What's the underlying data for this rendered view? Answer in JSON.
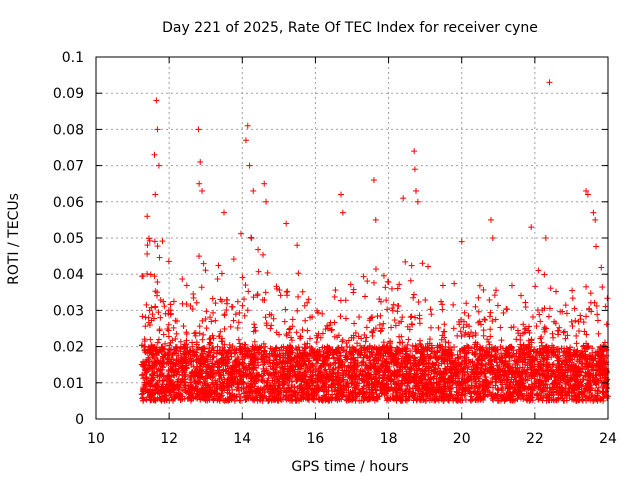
{
  "chart_data": {
    "type": "scatter",
    "title": "Day 221 of 2025, Rate Of TEC Index for receiver cyne",
    "xlabel": "GPS time / hours",
    "ylabel": "ROTI / TECUs",
    "xlim": [
      10,
      24
    ],
    "ylim": [
      0,
      0.1
    ],
    "xticks": [
      "10",
      "12",
      "14",
      "16",
      "18",
      "20",
      "22",
      "24"
    ],
    "yticks": [
      "0",
      "0.01",
      "0.02",
      "0.03",
      "0.04",
      "0.05",
      "0.06",
      "0.07",
      "0.08",
      "0.09",
      "0.1"
    ],
    "grid": true,
    "marker": "plus",
    "color": "#ff0000",
    "series": [
      {
        "name": "ROTI",
        "x_range": [
          11.25,
          24.0
        ],
        "typical_range": [
          0.005,
          0.02
        ],
        "envelope": [
          [
            11.3,
            0.058
          ],
          [
            11.5,
            0.05
          ],
          [
            11.65,
            0.06
          ],
          [
            11.75,
            0.052
          ],
          [
            12.0,
            0.045
          ],
          [
            12.3,
            0.04
          ],
          [
            12.6,
            0.05
          ],
          [
            12.9,
            0.045
          ],
          [
            13.2,
            0.042
          ],
          [
            13.5,
            0.048
          ],
          [
            13.8,
            0.05
          ],
          [
            14.1,
            0.056
          ],
          [
            14.4,
            0.05
          ],
          [
            14.6,
            0.052
          ],
          [
            14.9,
            0.04
          ],
          [
            15.2,
            0.035
          ],
          [
            15.6,
            0.042
          ],
          [
            16.0,
            0.03
          ],
          [
            16.4,
            0.038
          ],
          [
            16.8,
            0.04
          ],
          [
            17.2,
            0.038
          ],
          [
            17.6,
            0.045
          ],
          [
            18.0,
            0.042
          ],
          [
            18.3,
            0.04
          ],
          [
            18.6,
            0.05
          ],
          [
            18.9,
            0.045
          ],
          [
            19.2,
            0.042
          ],
          [
            19.6,
            0.035
          ],
          [
            20.0,
            0.04
          ],
          [
            20.3,
            0.035
          ],
          [
            20.6,
            0.042
          ],
          [
            20.9,
            0.045
          ],
          [
            21.2,
            0.035
          ],
          [
            21.6,
            0.04
          ],
          [
            21.9,
            0.035
          ],
          [
            22.2,
            0.045
          ],
          [
            22.5,
            0.04
          ],
          [
            22.8,
            0.035
          ],
          [
            23.1,
            0.04
          ],
          [
            23.4,
            0.045
          ],
          [
            23.6,
            0.055
          ],
          [
            23.8,
            0.045
          ],
          [
            24.0,
            0.04
          ]
        ],
        "spikes": [
          [
            11.4,
            0.056
          ],
          [
            11.6,
            0.073
          ],
          [
            11.62,
            0.062
          ],
          [
            11.65,
            0.088
          ],
          [
            11.68,
            0.08
          ],
          [
            11.72,
            0.07
          ],
          [
            12.8,
            0.08
          ],
          [
            12.82,
            0.065
          ],
          [
            12.85,
            0.071
          ],
          [
            12.9,
            0.063
          ],
          [
            13.5,
            0.057
          ],
          [
            14.1,
            0.077
          ],
          [
            14.15,
            0.081
          ],
          [
            14.2,
            0.07
          ],
          [
            14.3,
            0.063
          ],
          [
            14.6,
            0.065
          ],
          [
            14.65,
            0.06
          ],
          [
            15.2,
            0.054
          ],
          [
            15.5,
            0.048
          ],
          [
            16.7,
            0.062
          ],
          [
            16.75,
            0.057
          ],
          [
            17.6,
            0.066
          ],
          [
            17.65,
            0.055
          ],
          [
            18.4,
            0.061
          ],
          [
            18.7,
            0.074
          ],
          [
            18.72,
            0.069
          ],
          [
            18.75,
            0.063
          ],
          [
            18.8,
            0.06
          ],
          [
            20.0,
            0.049
          ],
          [
            20.8,
            0.055
          ],
          [
            20.85,
            0.05
          ],
          [
            21.9,
            0.053
          ],
          [
            22.4,
            0.093
          ],
          [
            22.3,
            0.05
          ],
          [
            23.4,
            0.063
          ],
          [
            23.45,
            0.062
          ],
          [
            23.6,
            0.057
          ],
          [
            23.65,
            0.055
          ]
        ]
      }
    ]
  }
}
